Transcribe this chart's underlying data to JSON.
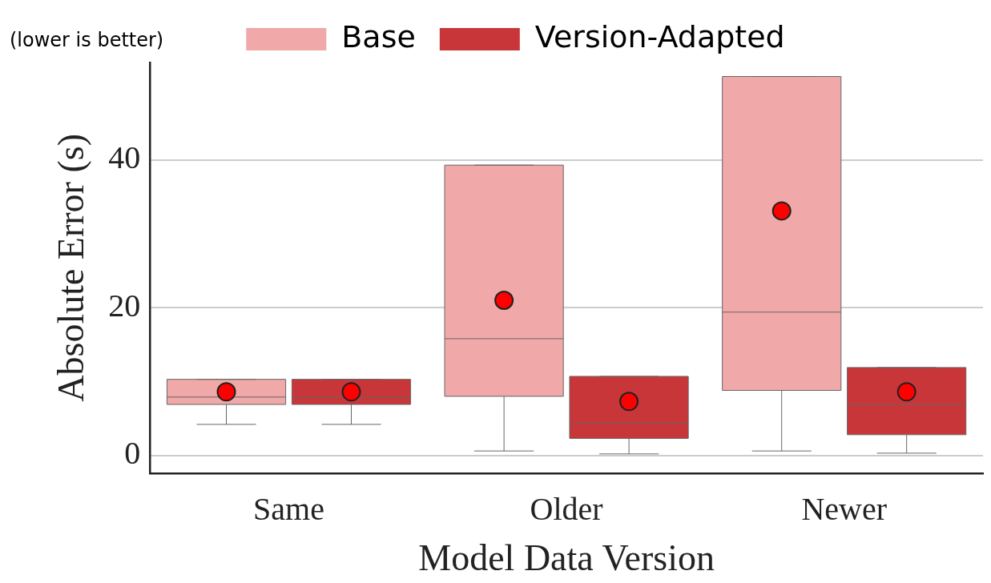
{
  "chart_data": {
    "type": "box",
    "xlabel": "Model Data Version",
    "ylabel": "Absolute Error (s)",
    "annotations": [
      "(lower is better)"
    ],
    "categories": [
      "Same",
      "Older",
      "Newer"
    ],
    "ylim": [
      -2.4,
      53.2
    ],
    "yticks": [
      0,
      20,
      40
    ],
    "grid": "y",
    "legend": "top",
    "series": [
      {
        "name": "Base",
        "color": "#f0a8a8",
        "boxes": [
          {
            "low": 4.2,
            "q1": 6.9,
            "median": 7.9,
            "q3": 10.3,
            "high": 10.3,
            "mean": 8.6
          },
          {
            "low": 0.6,
            "q1": 8.0,
            "median": 15.8,
            "q3": 39.3,
            "high": 39.3,
            "mean": 21.0
          },
          {
            "low": 0.6,
            "q1": 8.8,
            "median": 19.4,
            "q3": 51.3,
            "high": 51.3,
            "mean": 33.1
          }
        ]
      },
      {
        "name": "Version-Adapted",
        "color": "#c8363a",
        "boxes": [
          {
            "low": 4.2,
            "q1": 6.9,
            "median": 7.9,
            "q3": 10.3,
            "high": 10.3,
            "mean": 8.6
          },
          {
            "low": 0.2,
            "q1": 2.3,
            "median": 4.4,
            "q3": 10.7,
            "high": 10.7,
            "mean": 7.3
          },
          {
            "low": 0.3,
            "q1": 2.8,
            "median": 6.9,
            "q3": 11.9,
            "high": 11.9,
            "mean": 8.6
          }
        ]
      }
    ]
  }
}
